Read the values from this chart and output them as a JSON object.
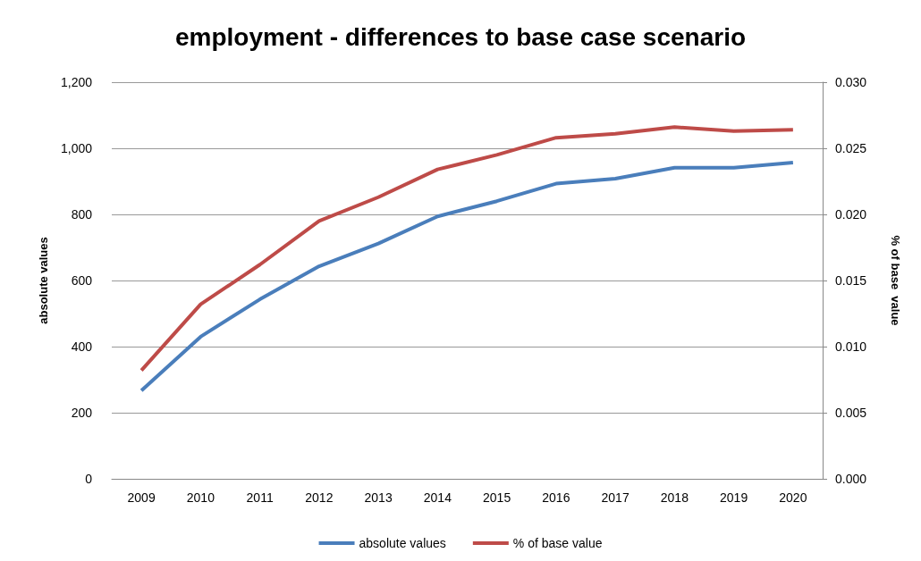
{
  "chart_data": {
    "type": "line",
    "title": "employment - differences to base case scenario",
    "ylabel": "absolute values",
    "y2label": "% of base  value",
    "categories": [
      "2009",
      "2010",
      "2011",
      "2012",
      "2013",
      "2014",
      "2015",
      "2016",
      "2017",
      "2018",
      "2019",
      "2020"
    ],
    "series": [
      {
        "name": "absolute values",
        "color": "#4a7ebb",
        "values": [
          267,
          430,
          543,
          643,
          712,
          794,
          840,
          893,
          908,
          941,
          941,
          957
        ]
      },
      {
        "name": "% of base value",
        "color": "#be4b48",
        "axis": "y2",
        "values": [
          0.0082,
          0.0132,
          0.0162,
          0.0195,
          0.0213,
          0.0234,
          0.0245,
          0.0258,
          0.0261,
          0.0266,
          0.0263,
          0.0264
        ]
      }
    ],
    "ylim": [
      0,
      1200
    ],
    "yticks": [
      {
        "value": 0,
        "label": "0"
      },
      {
        "value": 200,
        "label": "200"
      },
      {
        "value": 400,
        "label": "400"
      },
      {
        "value": 600,
        "label": "600"
      },
      {
        "value": 800,
        "label": "800"
      },
      {
        "value": 1000,
        "label": "1,000"
      },
      {
        "value": 1200,
        "label": "1,200"
      }
    ],
    "y2lim": [
      0,
      0.03
    ],
    "y2ticks": [
      {
        "value": 0,
        "label": "0.000"
      },
      {
        "value": 0.005,
        "label": "0.005"
      },
      {
        "value": 0.01,
        "label": "0.010"
      },
      {
        "value": 0.015,
        "label": "0.015"
      },
      {
        "value": 0.02,
        "label": "0.020"
      },
      {
        "value": 0.025,
        "label": "0.025"
      },
      {
        "value": 0.03,
        "label": "0.030"
      }
    ],
    "grid": "y",
    "legend": "bottom",
    "marker": "none",
    "line_style": "solid"
  }
}
